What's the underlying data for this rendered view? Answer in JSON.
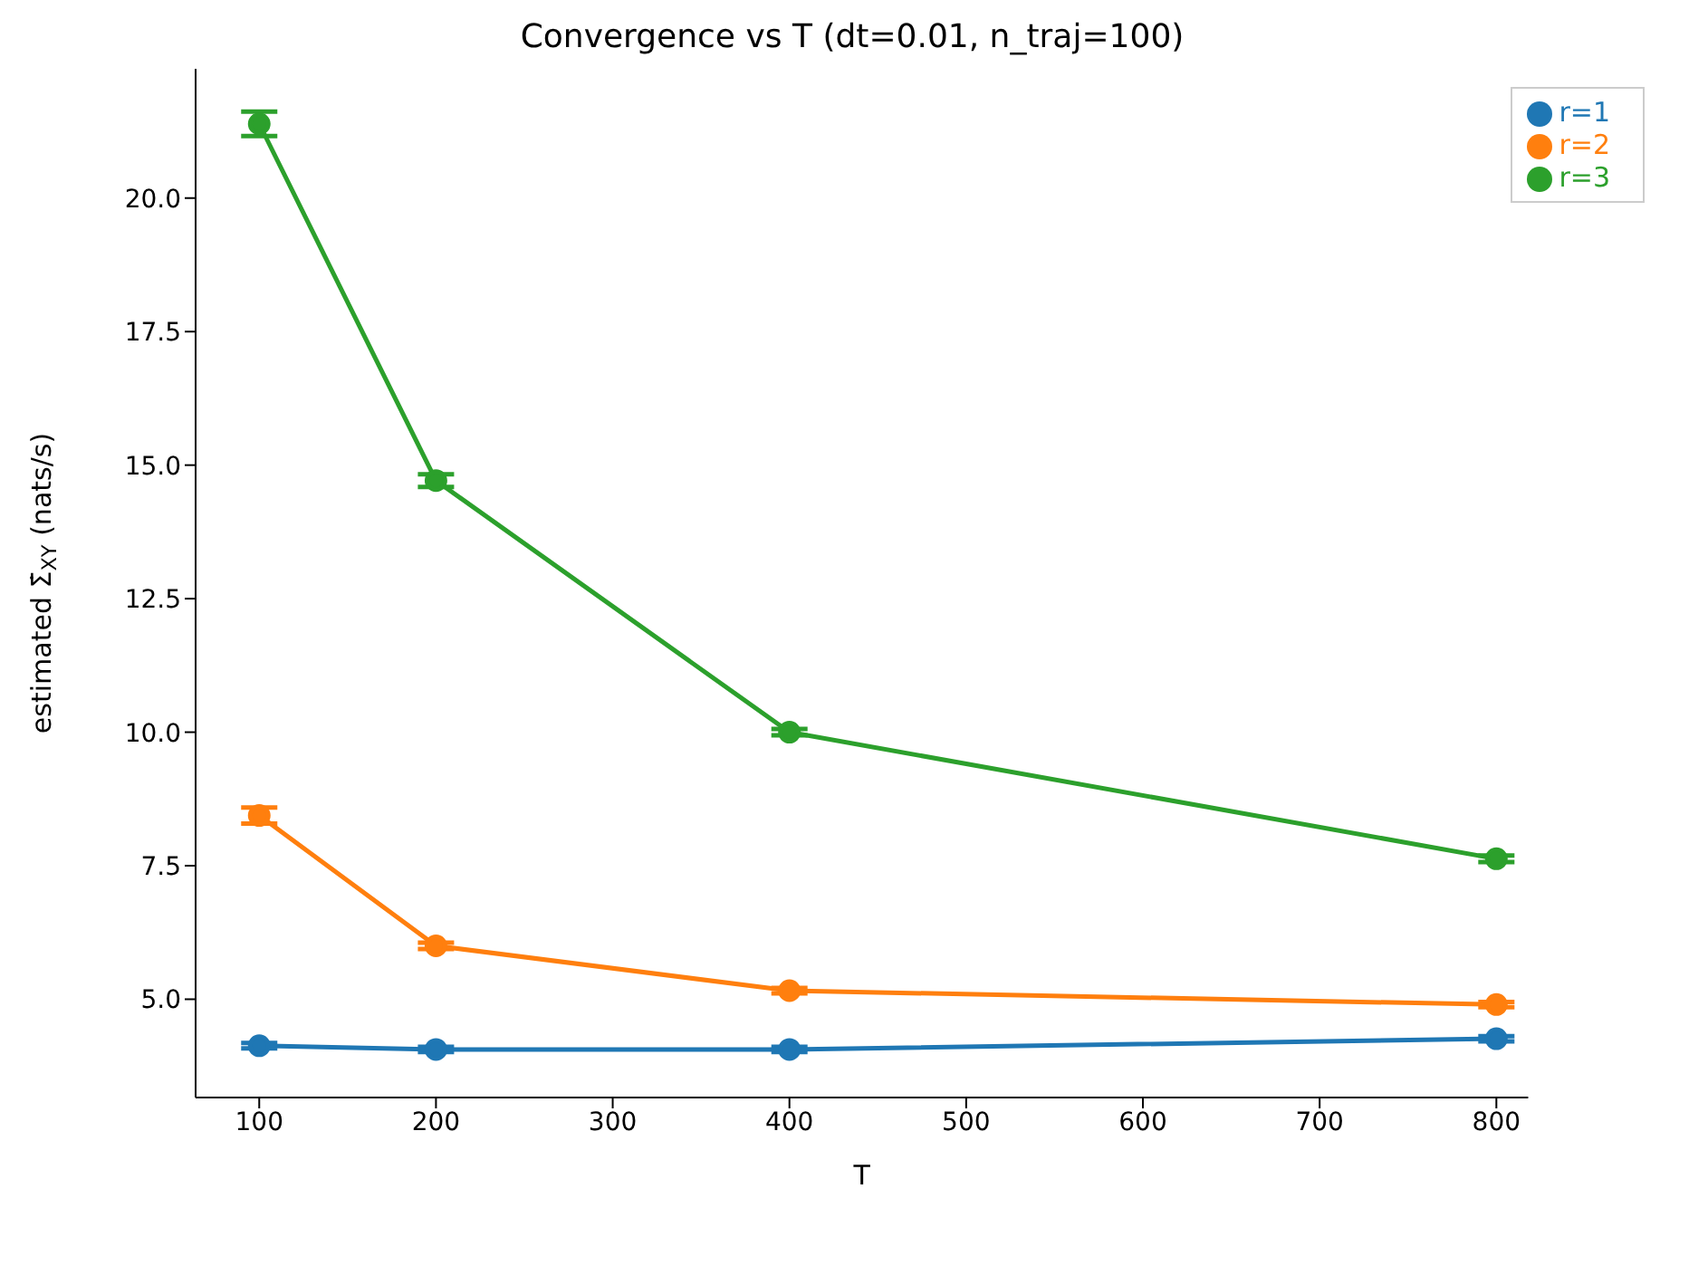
{
  "chart_data": {
    "type": "line",
    "title": "Convergence vs T (dt=0.01, n_traj=100)",
    "xlabel": "T",
    "ylabel": "estimated Σ̇$_{XY}$ (nats/s)",
    "x": [
      100,
      200,
      400,
      800
    ],
    "series": [
      {
        "name": "r=1",
        "color": "#1f77b4",
        "values": [
          4.13,
          4.06,
          4.06,
          4.26
        ],
        "errors": [
          0.05,
          0.05,
          0.05,
          0.05
        ]
      },
      {
        "name": "r=2",
        "color": "#ff7f0e",
        "values": [
          8.44,
          6.0,
          5.16,
          4.9
        ],
        "errors": [
          0.15,
          0.06,
          0.05,
          0.05
        ]
      },
      {
        "name": "r=3",
        "color": "#2ca02c",
        "values": [
          21.39,
          14.71,
          10.0,
          7.63
        ],
        "errors": [
          0.23,
          0.12,
          0.06,
          0.06
        ]
      }
    ],
    "xlim": [
      64,
      818
    ],
    "xticks": [
      100,
      200,
      300,
      400,
      500,
      600,
      700,
      800
    ],
    "ylim": [
      3.16,
      22.42
    ],
    "yticks": [
      {
        "value": 5,
        "label": "5.0"
      },
      7.5,
      {
        "value": 10,
        "label": "10.0"
      },
      12.5,
      {
        "value": 15,
        "label": "15.0"
      },
      17.5,
      {
        "value": 20,
        "label": "20.0"
      }
    ],
    "marker": "circle",
    "line_style": "solid",
    "grid": false,
    "legend": "top right"
  }
}
